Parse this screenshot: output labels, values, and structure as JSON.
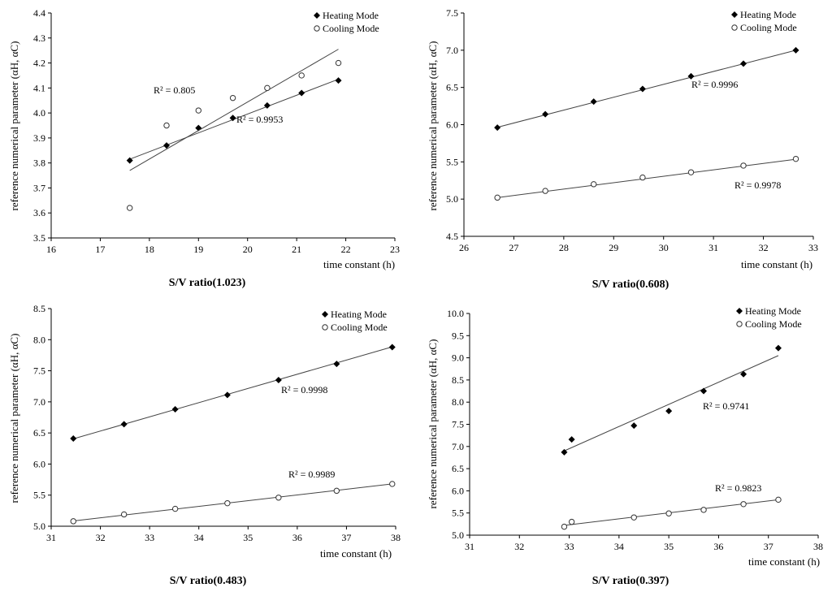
{
  "chart_data": [
    {
      "type": "scatter",
      "caption": "S/V ratio(1.023)",
      "xlabel": "time constant (h)",
      "ylabel": "reference numerical parameter (αH, αC)",
      "xlim": [
        16,
        23
      ],
      "ylim": [
        3.5,
        4.4
      ],
      "xticks": [
        16,
        17,
        18,
        19,
        20,
        21,
        22,
        23
      ],
      "yticks": [
        3.5,
        3.6,
        3.7,
        3.8,
        3.9,
        4.0,
        4.1,
        4.2,
        4.3,
        4.4
      ],
      "ytick_labels": [
        "3.5",
        "3.6",
        "3.7",
        "3.8",
        "3.9",
        "4.0",
        "4.1",
        "4.2",
        "4.3",
        "4.4"
      ],
      "legend": [
        "Heating Mode",
        "Cooling Mode"
      ],
      "series": [
        {
          "name": "Heating Mode",
          "marker": "filled-diamond",
          "x": [
            17.6,
            18.35,
            19.0,
            19.7,
            20.4,
            21.1,
            21.85
          ],
          "y": [
            3.81,
            3.87,
            3.94,
            3.98,
            4.03,
            4.08,
            4.13
          ],
          "fit": {
            "x": [
              17.6,
              21.85
            ],
            "y": [
              3.815,
              4.135
            ]
          },
          "r2_label": "R² = 0.9953"
        },
        {
          "name": "Cooling Mode",
          "marker": "open-circle",
          "x": [
            17.6,
            18.35,
            19.0,
            19.7,
            20.4,
            21.1,
            21.85
          ],
          "y": [
            3.62,
            3.95,
            4.01,
            4.06,
            4.1,
            4.15,
            4.2
          ],
          "fit": {
            "x": [
              17.6,
              21.85
            ],
            "y": [
              3.77,
              4.255
            ]
          },
          "r2_label": "R² = 0.805"
        }
      ]
    },
    {
      "type": "scatter",
      "caption": "S/V ratio(0.608)",
      "xlabel": "time constant (h)",
      "ylabel": "reference numerical parameter (αH, αC)",
      "xlim": [
        26,
        33
      ],
      "ylim": [
        4.5,
        7.5
      ],
      "xticks": [
        26,
        27,
        28,
        29,
        30,
        31,
        32,
        33
      ],
      "yticks": [
        4.5,
        5.0,
        5.5,
        6.0,
        6.5,
        7.0,
        7.5
      ],
      "ytick_labels": [
        "4.5",
        "5.0",
        "5.5",
        "6.0",
        "6.5",
        "7.0",
        "7.5"
      ],
      "legend": [
        "Heating Mode",
        "Cooling Mode"
      ],
      "series": [
        {
          "name": "Heating Mode",
          "marker": "filled-diamond",
          "x": [
            26.67,
            27.63,
            28.6,
            29.58,
            30.55,
            31.6,
            32.65
          ],
          "y": [
            5.96,
            6.14,
            6.31,
            6.48,
            6.65,
            6.82,
            7.0
          ],
          "fit": {
            "x": [
              26.67,
              32.65
            ],
            "y": [
              5.965,
              7.0
            ]
          },
          "r2_label": "R² = 0.9996"
        },
        {
          "name": "Cooling Mode",
          "marker": "open-circle",
          "x": [
            26.67,
            27.63,
            28.6,
            29.58,
            30.55,
            31.6,
            32.65
          ],
          "y": [
            5.02,
            5.11,
            5.2,
            5.29,
            5.36,
            5.45,
            5.54
          ],
          "fit": {
            "x": [
              26.67,
              32.65
            ],
            "y": [
              5.02,
              5.535
            ]
          },
          "r2_label": "R² = 0.9978"
        }
      ]
    },
    {
      "type": "scatter",
      "caption": "S/V ratio(0.483)",
      "xlabel": "time constant (h)",
      "ylabel": "reference numerical parameter (αH, αC)",
      "xlim": [
        31,
        38
      ],
      "ylim": [
        5.0,
        8.5
      ],
      "xticks": [
        31,
        32,
        33,
        34,
        35,
        36,
        37,
        38
      ],
      "yticks": [
        5.0,
        5.5,
        6.0,
        6.5,
        7.0,
        7.5,
        8.0,
        8.5
      ],
      "ytick_labels": [
        "5.0",
        "5.5",
        "6.0",
        "6.5",
        "7.0",
        "7.5",
        "8.0",
        "8.5"
      ],
      "legend": [
        "Heating Mode",
        "Cooling Mode"
      ],
      "series": [
        {
          "name": "Heating Mode",
          "marker": "filled-diamond",
          "x": [
            31.45,
            32.48,
            33.52,
            34.58,
            35.62,
            36.8,
            37.93
          ],
          "y": [
            6.41,
            6.64,
            6.88,
            7.11,
            7.35,
            7.61,
            7.88
          ],
          "fit": {
            "x": [
              31.45,
              37.93
            ],
            "y": [
              6.405,
              7.885
            ]
          },
          "r2_label": "R² = 0.9998"
        },
        {
          "name": "Cooling Mode",
          "marker": "open-circle",
          "x": [
            31.45,
            32.48,
            33.52,
            34.58,
            35.62,
            36.8,
            37.93
          ],
          "y": [
            5.08,
            5.19,
            5.28,
            5.37,
            5.46,
            5.57,
            5.68
          ],
          "fit": {
            "x": [
              31.45,
              37.93
            ],
            "y": [
              5.085,
              5.68
            ]
          },
          "r2_label": "R² = 0.9989"
        }
      ]
    },
    {
      "type": "scatter",
      "caption": "S/V ratio(0.397)",
      "xlabel": "time constant (h)",
      "ylabel": "reference numerical parameter (αH, αC)",
      "xlim": [
        31,
        38
      ],
      "ylim": [
        5.0,
        10.0
      ],
      "xticks": [
        31,
        32,
        33,
        34,
        35,
        36,
        37,
        38
      ],
      "yticks": [
        5.0,
        5.5,
        6.0,
        6.5,
        7.0,
        7.5,
        8.0,
        8.5,
        9.0,
        9.5,
        10.0
      ],
      "ytick_labels": [
        "5.0",
        "5.5",
        "6.0",
        "6.5",
        "7.0",
        "7.5",
        "8.0",
        "8.5",
        "9.0",
        "9.5",
        "10.0"
      ],
      "legend": [
        "Heating Mode",
        "Cooling Mode"
      ],
      "series": [
        {
          "name": "Heating Mode",
          "marker": "filled-diamond",
          "x": [
            32.9,
            33.05,
            34.3,
            35.0,
            35.7,
            36.5,
            37.2
          ],
          "y": [
            6.87,
            7.16,
            7.47,
            7.8,
            8.25,
            8.63,
            9.22
          ],
          "fit": {
            "x": [
              32.9,
              37.2
            ],
            "y": [
              6.9,
              9.05
            ]
          },
          "r2_label": "R² = 0.9741"
        },
        {
          "name": "Cooling Mode",
          "marker": "open-circle",
          "x": [
            32.9,
            33.05,
            34.3,
            35.0,
            35.7,
            36.5,
            37.2
          ],
          "y": [
            5.19,
            5.3,
            5.4,
            5.49,
            5.57,
            5.7,
            5.8
          ],
          "fit": {
            "x": [
              32.9,
              37.2
            ],
            "y": [
              5.22,
              5.8
            ]
          },
          "r2_label": "R² = 0.9823"
        }
      ]
    }
  ]
}
